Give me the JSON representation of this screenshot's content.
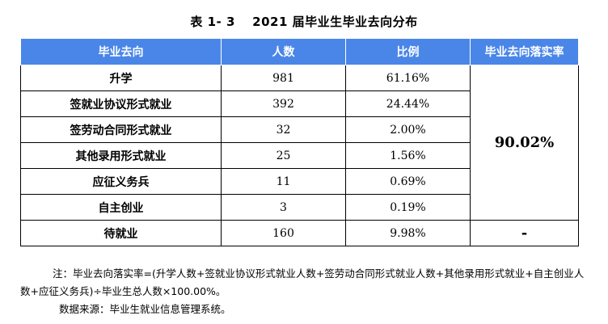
{
  "title": "表 1- 3　 2021 届毕业生毕业去向分布",
  "headers": [
    "毕业去向",
    "人数",
    "比例",
    "毕业去向落实率"
  ],
  "rows": [
    {
      "category": "升学",
      "count": "981",
      "ratio": "61.16%"
    },
    {
      "category": "签就业协议形式就业",
      "count": "392",
      "ratio": "24.44%"
    },
    {
      "category": "签劳动合同形式就业",
      "count": "32",
      "ratio": "2.00%"
    },
    {
      "category": "其他录用形式就业",
      "count": "25",
      "ratio": "1.56%"
    },
    {
      "category": "应征义务兵",
      "count": "11",
      "ratio": "0.69%"
    },
    {
      "category": "自主创业",
      "count": "3",
      "ratio": "0.19%"
    },
    {
      "category": "待就业",
      "count": "160",
      "ratio": "9.98%"
    }
  ],
  "implementation_rate": "90.02%",
  "waiting_rate": "-",
  "note": "注：毕业去向落实率=(升学人数+签就业协议形式就业人数+签劳动合同形式就业人数+其他录用形式就业+自主创业人数+应征义务兵)÷毕业生总人数×100.00%。",
  "source": "数据来源：毕业生就业信息管理系统。",
  "colors": {
    "header_bg": "#4a86e8",
    "header_text": "#ffffff"
  }
}
